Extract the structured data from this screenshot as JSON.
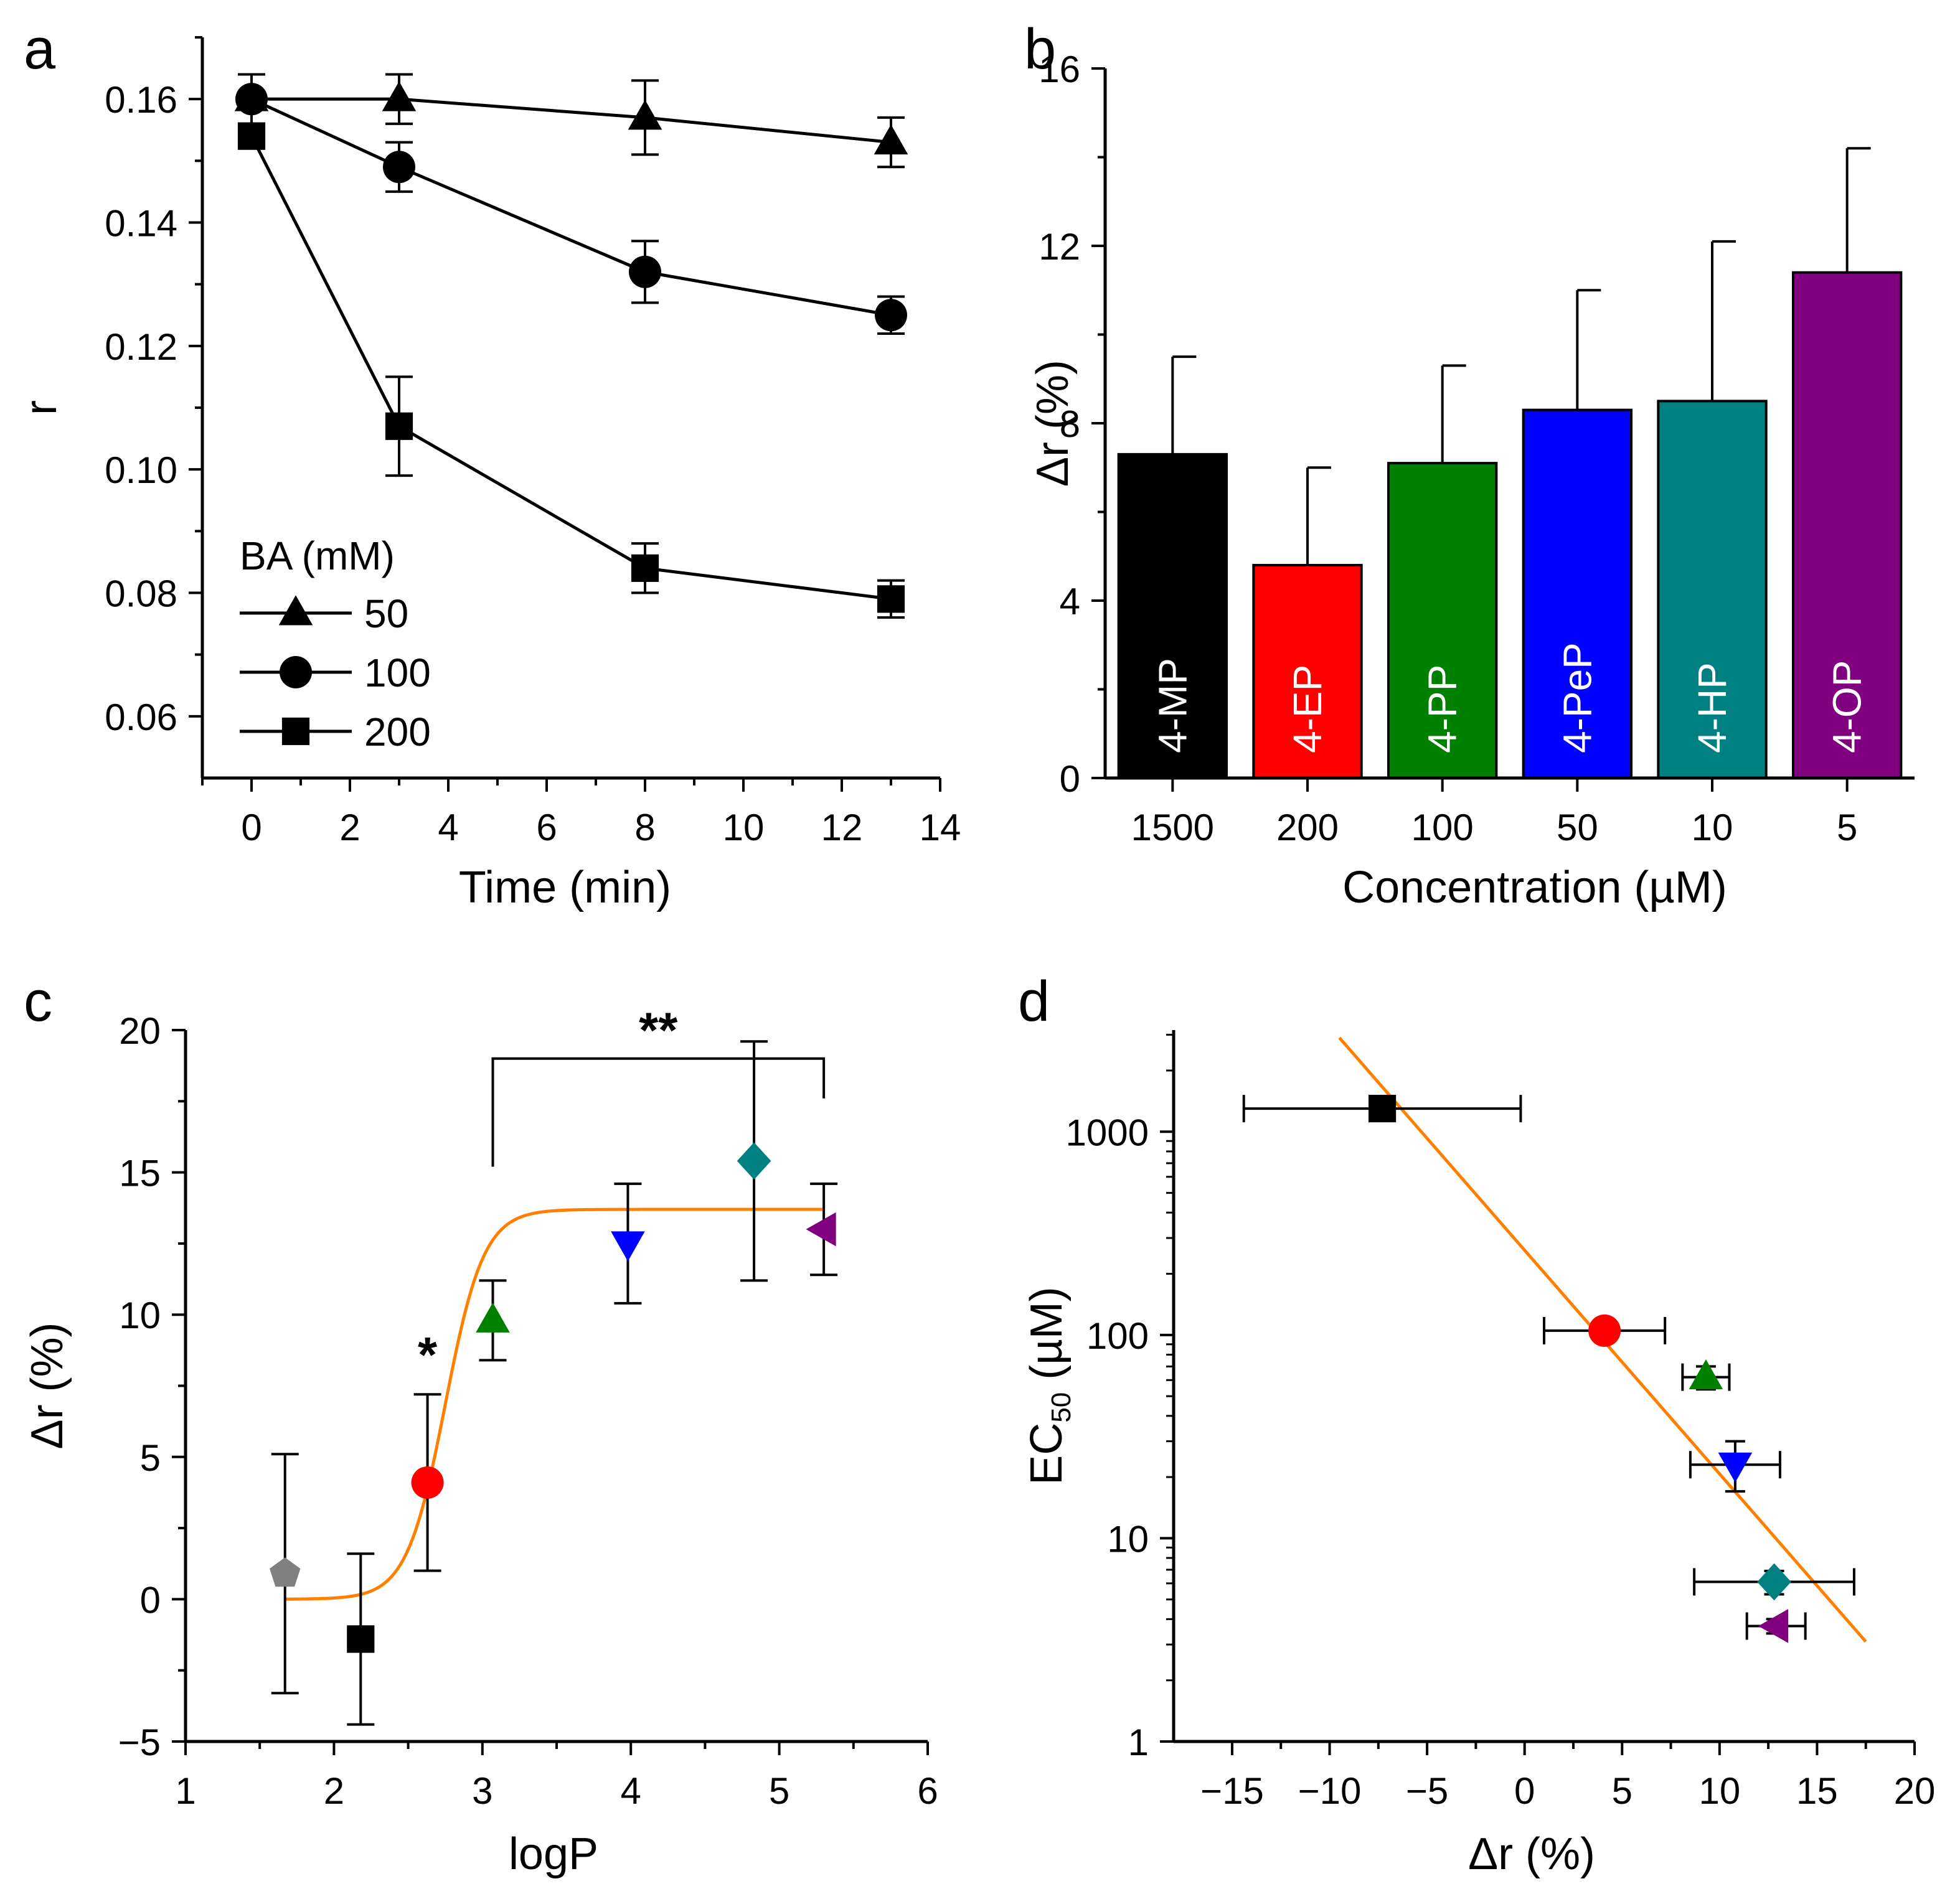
{
  "chart_data": [
    {
      "panel": "a",
      "type": "line",
      "xlabel": "Time (min)",
      "ylabel": "r",
      "xlim": [
        -1,
        14
      ],
      "ylim": [
        0.05,
        0.17
      ],
      "xticks": [
        0,
        2,
        4,
        6,
        8,
        10,
        12,
        14
      ],
      "yticks": [
        0.06,
        0.08,
        0.1,
        0.12,
        0.14,
        0.16
      ],
      "ytick_labels": [
        "0.06",
        "0.08",
        "0.10",
        "0.12",
        "0.14",
        "0.16"
      ],
      "legend_title": "BA (mM)",
      "series": [
        {
          "name": "50",
          "marker": "triangle",
          "x": [
            0,
            3,
            8,
            13
          ],
          "y": [
            0.16,
            0.16,
            0.157,
            0.153
          ],
          "err": [
            0.004,
            0.004,
            0.006,
            0.004
          ]
        },
        {
          "name": "100",
          "marker": "circle",
          "x": [
            0,
            3,
            8,
            13
          ],
          "y": [
            0.16,
            0.149,
            0.132,
            0.125
          ],
          "err": [
            0.004,
            0.004,
            0.005,
            0.003
          ]
        },
        {
          "name": "200",
          "marker": "square",
          "x": [
            0,
            3,
            8,
            13
          ],
          "y": [
            0.154,
            0.107,
            0.084,
            0.079
          ],
          "err": [
            0.002,
            0.008,
            0.004,
            0.003
          ]
        }
      ]
    },
    {
      "panel": "b",
      "type": "bar",
      "xlabel": "Concentration (µM)",
      "ylabel": "Δr (%)",
      "ylim": [
        0,
        16
      ],
      "yticks": [
        0,
        4,
        8,
        12,
        16
      ],
      "categories": [
        "1500",
        "200",
        "100",
        "50",
        "10",
        "5"
      ],
      "bar_labels": [
        "4-MP",
        "4-EP",
        "4-PP",
        "4-PeP",
        "4-HP",
        "4-OP"
      ],
      "values": [
        7.3,
        4.8,
        7.1,
        8.3,
        8.5,
        11.4
      ],
      "errors": [
        2.2,
        2.2,
        2.2,
        2.7,
        3.6,
        2.8
      ],
      "colors": [
        "#000000",
        "#ff0000",
        "#008000",
        "#0000ff",
        "#008080",
        "#800080"
      ]
    },
    {
      "panel": "c",
      "type": "scatter",
      "xlabel": "logP",
      "ylabel": "Δr (%)",
      "xlim": [
        1,
        6
      ],
      "ylim": [
        -5,
        20
      ],
      "xticks": [
        1,
        2,
        3,
        4,
        5,
        6
      ],
      "yticks": [
        -5,
        0,
        5,
        10,
        15,
        20
      ],
      "ytick_labels": [
        "−5",
        "0",
        "5",
        "10",
        "15",
        "20"
      ],
      "points": [
        {
          "x": 1.67,
          "y": 0.9,
          "err": 4.2,
          "marker": "pentagon",
          "color": "#808080"
        },
        {
          "x": 2.18,
          "y": -1.4,
          "err": 3.0,
          "marker": "square",
          "color": "#000000"
        },
        {
          "x": 2.63,
          "y": 4.1,
          "err": 3.1,
          "marker": "circle",
          "color": "#ff0000"
        },
        {
          "x": 3.07,
          "y": 9.8,
          "err": 1.4,
          "marker": "triangle",
          "color": "#008000"
        },
        {
          "x": 3.98,
          "y": 12.5,
          "err": 2.1,
          "marker": "triangle-down",
          "color": "#0000ff"
        },
        {
          "x": 4.83,
          "y": 15.4,
          "err": 4.2,
          "marker": "diamond",
          "color": "#008080"
        },
        {
          "x": 5.3,
          "y": 13.0,
          "err": 1.6,
          "marker": "triangle-left",
          "color": "#800080"
        }
      ],
      "fit": {
        "type": "sigmoid",
        "color": "#ff8000",
        "bottom": 0,
        "top": 13.7,
        "x0": 2.75,
        "slope": 0.13,
        "xrange": [
          1.67,
          5.3
        ]
      },
      "annotations": {
        "single": "*",
        "double": "**",
        "bracket_x": [
          3.07,
          5.3
        ],
        "bracket_y": 19.0
      }
    },
    {
      "panel": "d",
      "type": "scatter",
      "xlabel": "Δr (%)",
      "ylabel": "EC50 (µM)",
      "ylabel_main": "EC",
      "ylabel_sub": "50",
      "ylabel_unit": " (µM)",
      "yscale": "log",
      "xlim": [
        -18,
        20
      ],
      "ylim": [
        1,
        3162
      ],
      "xticks": [
        -15,
        -10,
        -5,
        0,
        5,
        10,
        15,
        20
      ],
      "xtick_labels": [
        "−15",
        "−10",
        "−5",
        "0",
        "5",
        "10",
        "15",
        "20"
      ],
      "yticks": [
        1,
        10,
        100,
        1000
      ],
      "ytick_labels": [
        "1",
        "10",
        "100",
        "1000"
      ],
      "points": [
        {
          "x": -7.3,
          "y": 1300,
          "xerr": 7.1,
          "yerr_lo": 150,
          "yerr_hi": 150,
          "marker": "square",
          "color": "#000000"
        },
        {
          "x": 4.1,
          "y": 105,
          "xerr": 3.1,
          "yerr_lo": 5,
          "yerr_hi": 5,
          "marker": "circle",
          "color": "#ff0000"
        },
        {
          "x": 9.3,
          "y": 62,
          "xerr": 1.2,
          "yerr_lo": 8,
          "yerr_hi": 8,
          "marker": "triangle",
          "color": "#008000"
        },
        {
          "x": 10.8,
          "y": 23,
          "xerr": 2.3,
          "yerr_lo": 6,
          "yerr_hi": 7,
          "marker": "triangle-down",
          "color": "#0000ff"
        },
        {
          "x": 12.8,
          "y": 6.1,
          "xerr": 4.1,
          "yerr_lo": 0.8,
          "yerr_hi": 0.8,
          "marker": "diamond",
          "color": "#008080"
        },
        {
          "x": 12.9,
          "y": 3.7,
          "xerr": 1.5,
          "yerr_lo": 0.3,
          "yerr_hi": 0.3,
          "marker": "triangle-left",
          "color": "#800080"
        }
      ],
      "fit": {
        "type": "linear-log",
        "color": "#ff8000",
        "x": [
          -9.5,
          17.5
        ],
        "y": [
          2900,
          3.1
        ]
      }
    }
  ],
  "panel_letters": [
    "a",
    "b",
    "c",
    "d"
  ]
}
